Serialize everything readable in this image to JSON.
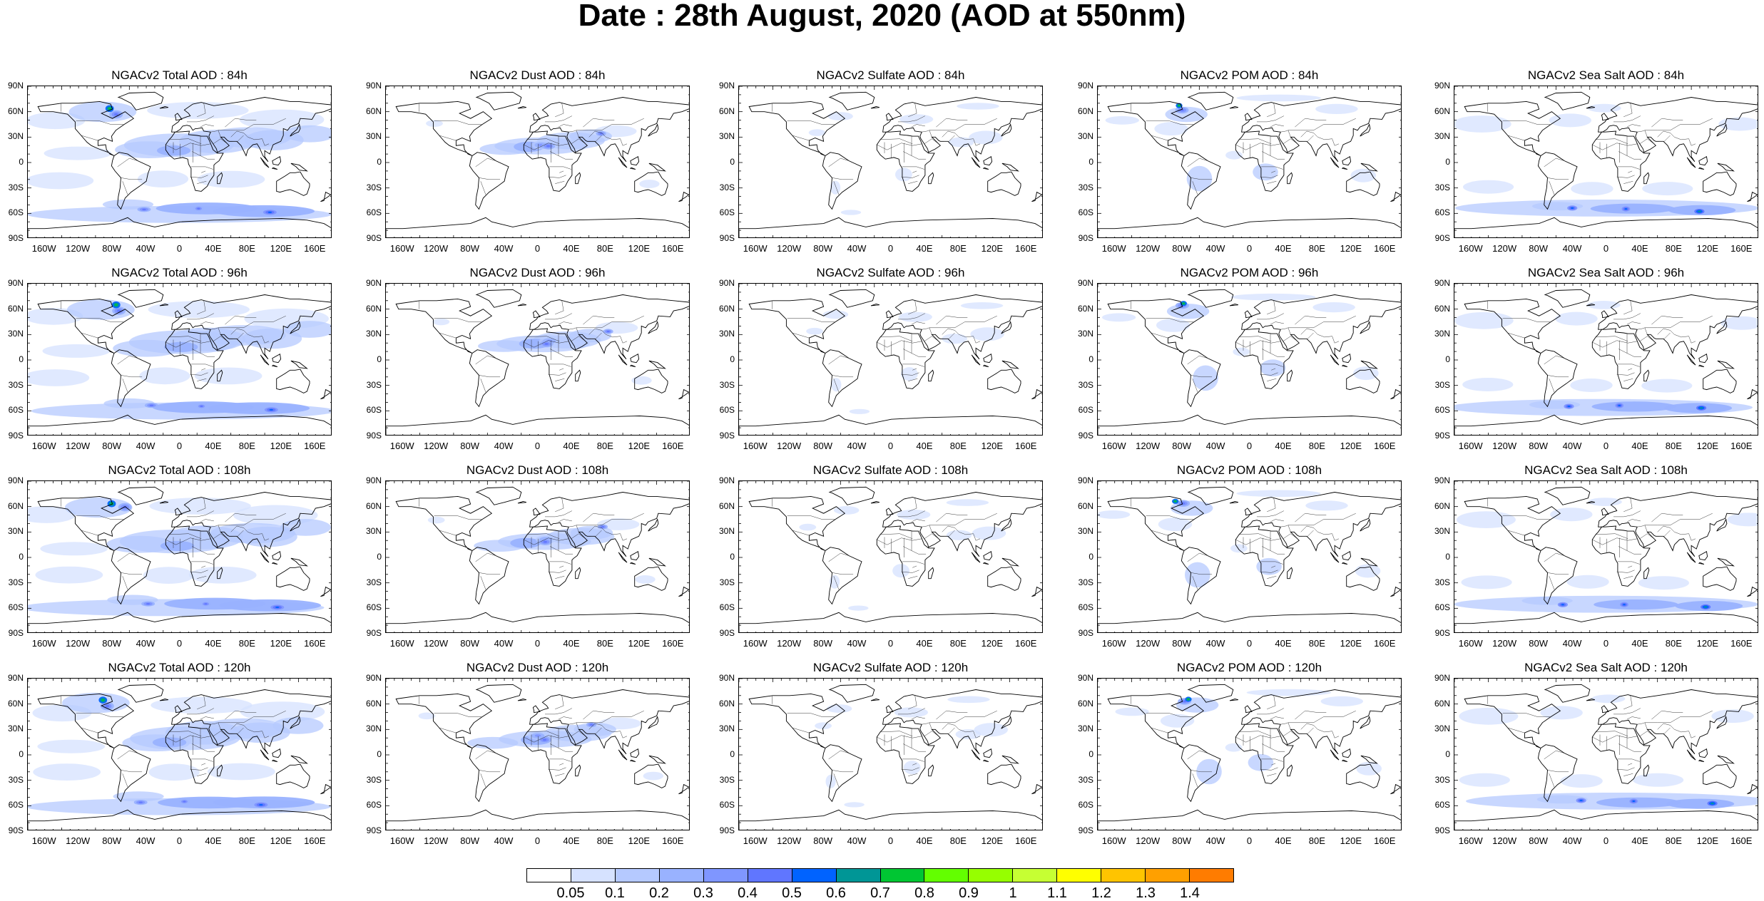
{
  "title": "Date : 28th August, 2020 (AOD at 550nm)",
  "panels": [
    [
      "NGACv2 Total AOD : 84h",
      "NGACv2 Dust AOD : 84h",
      "NGACv2 Sulfate AOD : 84h",
      "NGACv2 POM AOD : 84h",
      "NGACv2 Sea Salt AOD : 84h"
    ],
    [
      "NGACv2 Total AOD : 96h",
      "NGACv2 Dust AOD : 96h",
      "NGACv2 Sulfate AOD : 96h",
      "NGACv2 POM AOD : 96h",
      "NGACv2 Sea Salt AOD : 96h"
    ],
    [
      "NGACv2 Total AOD : 108h",
      "NGACv2 Dust AOD : 108h",
      "NGACv2 Sulfate AOD : 108h",
      "NGACv2 POM AOD : 108h",
      "NGACv2 Sea Salt AOD : 108h"
    ],
    [
      "NGACv2 Total AOD : 120h",
      "NGACv2 Dust AOD : 120h",
      "NGACv2 Sulfate AOD : 120h",
      "NGACv2 POM AOD : 120h",
      "NGACv2 Sea Salt  AOD : 120h"
    ]
  ],
  "lat_labels": [
    "90N",
    "60N",
    "30N",
    "0",
    "30S",
    "60S",
    "90S"
  ],
  "lon_labels": [
    "160W",
    "120W",
    "80W",
    "40W",
    "0",
    "40E",
    "80E",
    "120E",
    "160E"
  ],
  "colorbar": {
    "labels": [
      "0.05",
      "0.1",
      "0.2",
      "0.3",
      "0.4",
      "0.5",
      "0.6",
      "0.7",
      "0.8",
      "0.9",
      "1",
      "1.1",
      "1.2",
      "1.3",
      "1.4"
    ],
    "colors": [
      "#ffffff",
      "#d6e2ff",
      "#b5c9ff",
      "#99b2ff",
      "#7f96ff",
      "#6076ff",
      "#0063ff",
      "#009696",
      "#00c633",
      "#63ff00",
      "#96ff00",
      "#c6ff33",
      "#ffff00",
      "#ffc400",
      "#ffa000",
      "#ff7c00",
      "#ff1900"
    ]
  }
}
